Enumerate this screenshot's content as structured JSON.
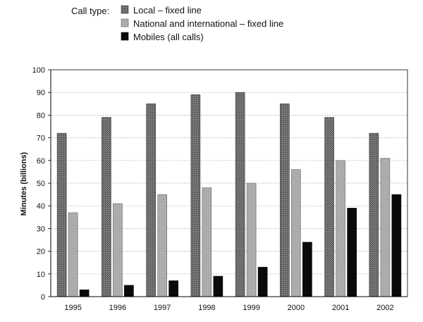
{
  "chart_data": {
    "type": "bar",
    "legend_title": "Call type:",
    "ylabel": "Minutes (billions)",
    "xlabel": "",
    "ylim": [
      0,
      100
    ],
    "yticks": [
      0,
      10,
      20,
      30,
      40,
      50,
      60,
      70,
      80,
      90,
      100
    ],
    "grid": "horizontal dotted",
    "legend_placement": "top",
    "categories": [
      "1995",
      "1996",
      "1997",
      "1998",
      "1999",
      "2000",
      "2001",
      "2002"
    ],
    "series": [
      {
        "name": "Local – fixed line",
        "color": "#6e6e6e",
        "values": [
          72,
          79,
          85,
          89,
          90,
          85,
          79,
          72
        ]
      },
      {
        "name": "National and international – fixed line",
        "color": "#a8a8a8",
        "values": [
          37,
          41,
          45,
          48,
          50,
          56,
          60,
          61
        ]
      },
      {
        "name": "Mobiles (all calls)",
        "color": "#0a0a0a",
        "values": [
          3,
          5,
          7,
          9,
          13,
          24,
          39,
          45
        ]
      }
    ]
  }
}
